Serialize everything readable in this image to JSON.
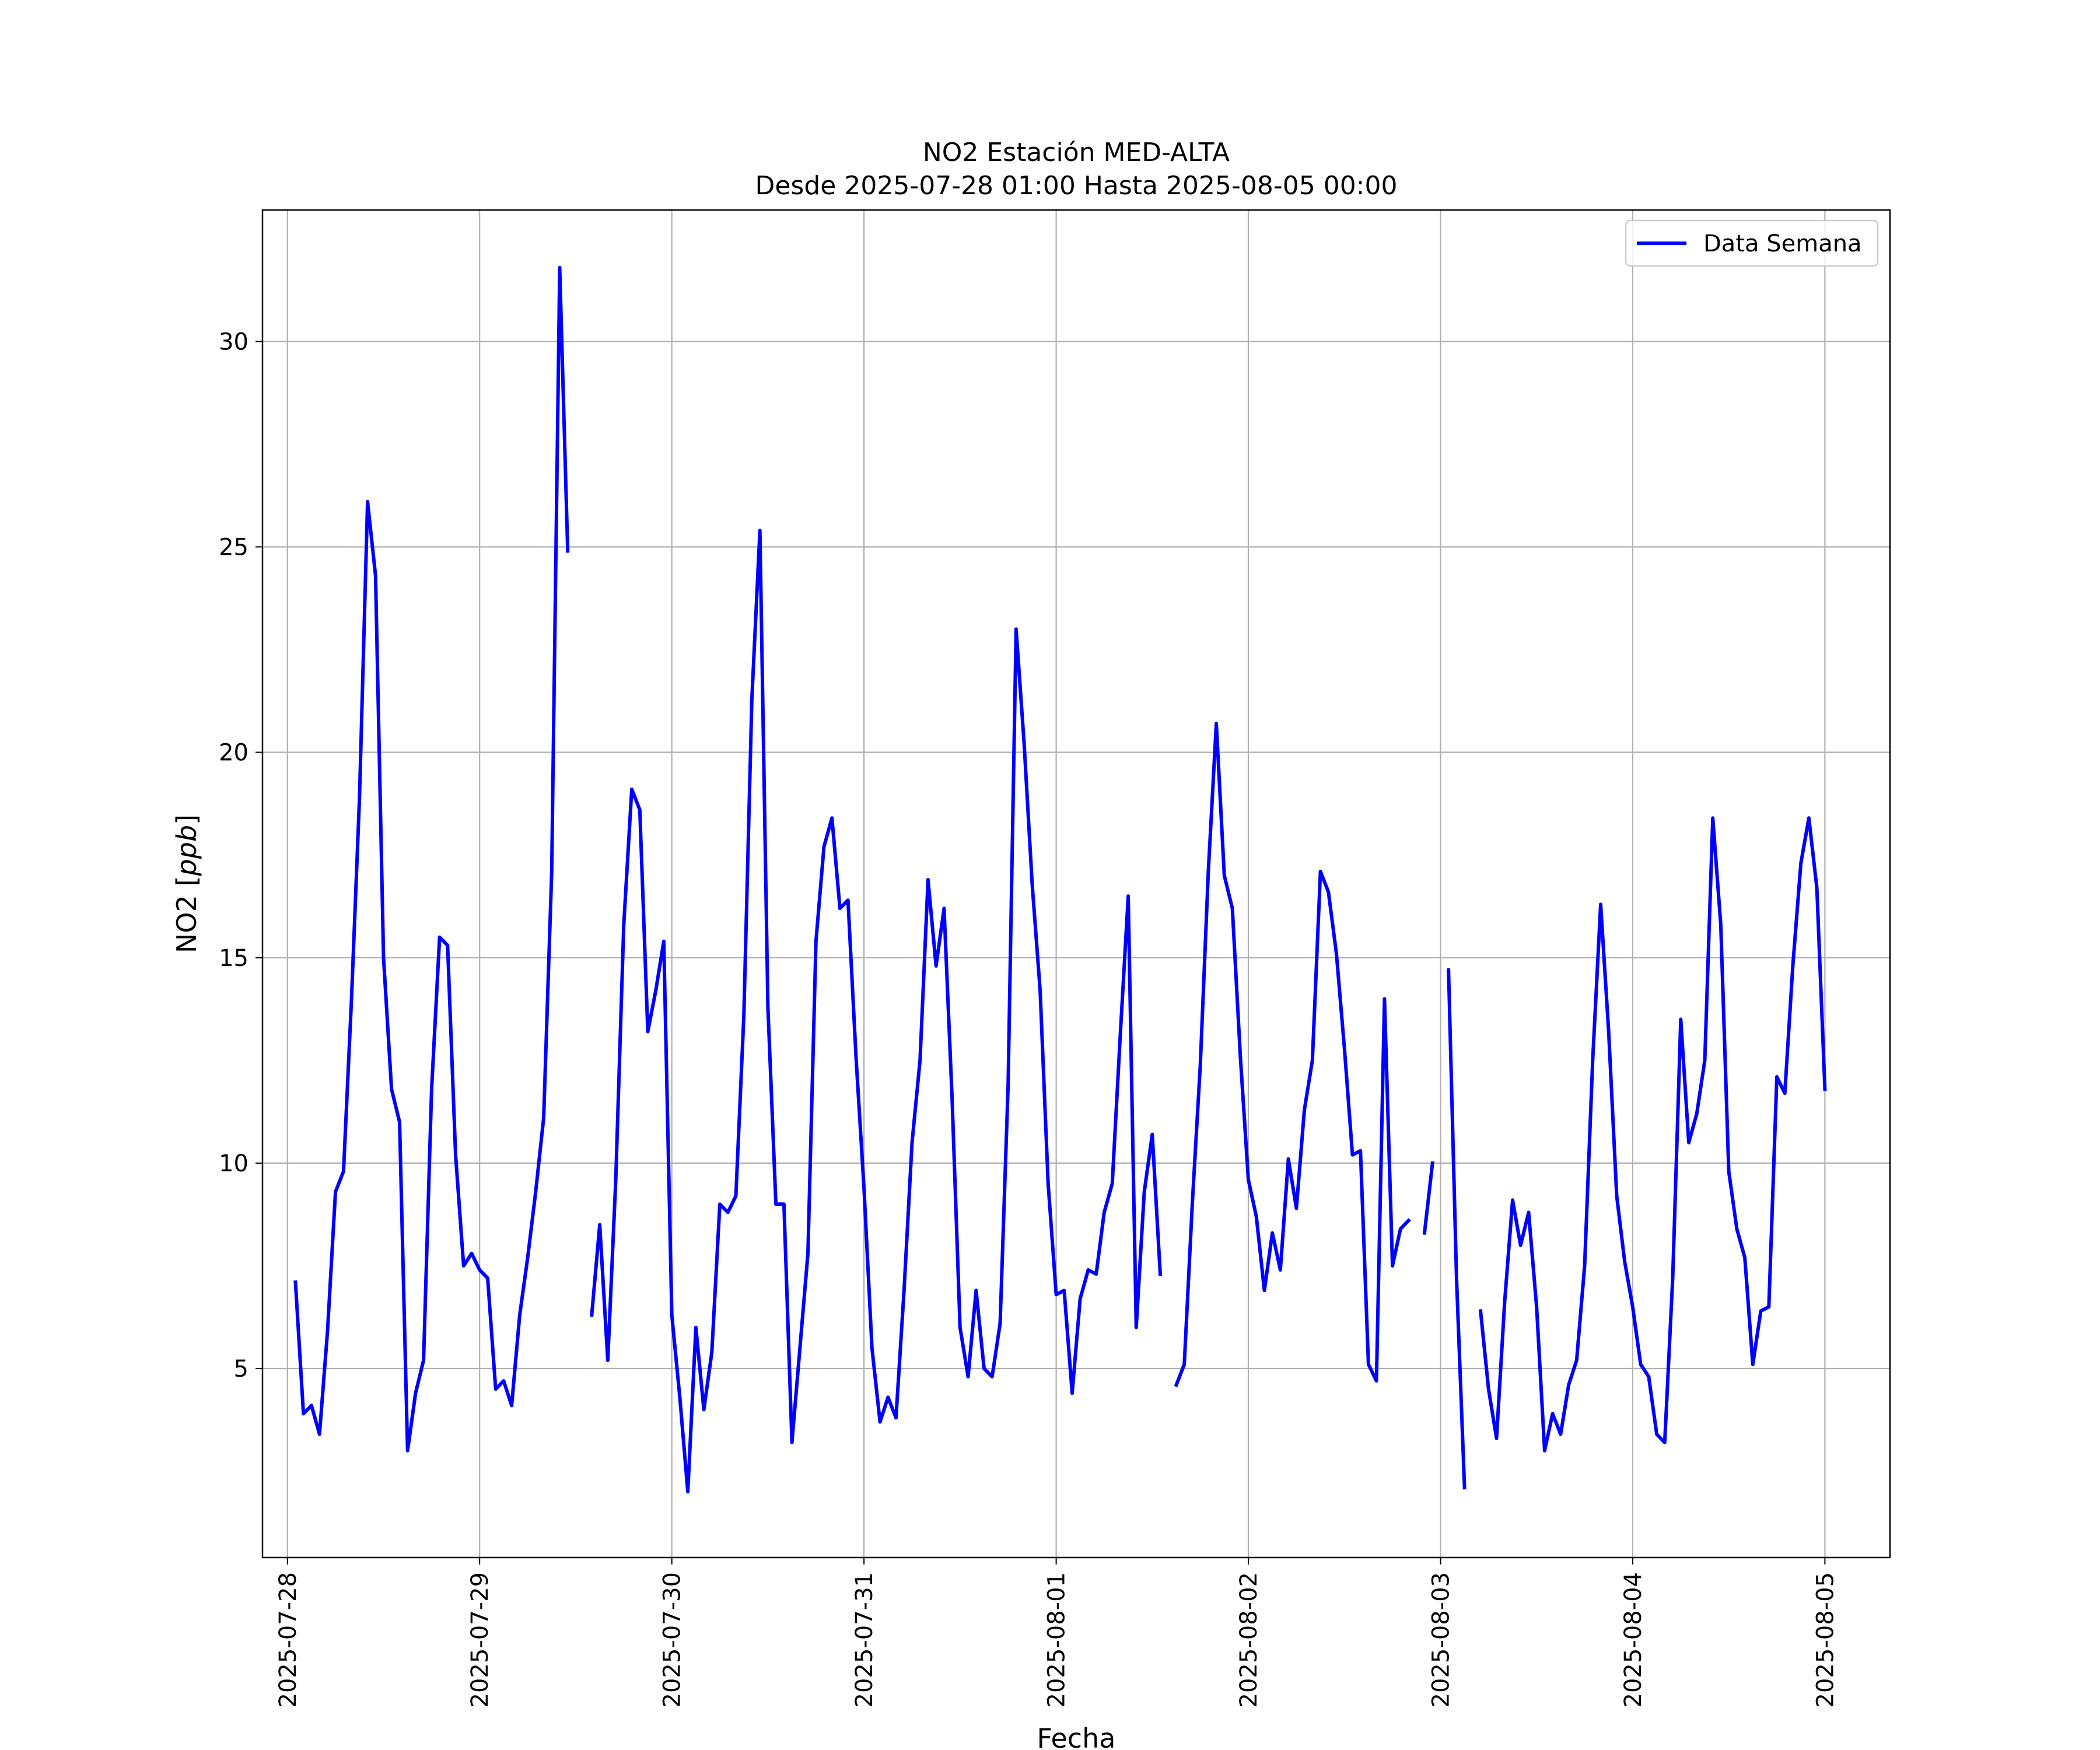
{
  "chart_data": {
    "type": "line",
    "title": "NO2 Estación MED-ALTA",
    "subtitle": "Desde 2025-07-28 01:00 Hasta 2025-08-05 00:00",
    "xlabel": "Fecha",
    "ylabel": "NO2 [ppb]",
    "ylabel_main": "NO2 [",
    "ylabel_unit": "ppb",
    "ylabel_close": "]",
    "x_ticks": [
      "2025-07-28",
      "2025-07-29",
      "2025-07-30",
      "2025-07-31",
      "2025-08-01",
      "2025-08-02",
      "2025-08-03",
      "2025-08-04",
      "2025-08-05"
    ],
    "y_ticks": [
      5,
      10,
      15,
      20,
      25,
      30
    ],
    "xlim": [
      "2025-07-27 20:53",
      "2025-08-05 08:08"
    ],
    "ylim": [
      0.4,
      33.2
    ],
    "grid": true,
    "legend_position": "upper right",
    "series": [
      {
        "name": "Data Semana",
        "color": "#0000ff",
        "segments": [
          [
            [
              "2025-07-28 01:00",
              7.1
            ],
            [
              "2025-07-28 02:00",
              3.9
            ],
            [
              "2025-07-28 03:00",
              4.1
            ],
            [
              "2025-07-28 04:00",
              3.4
            ],
            [
              "2025-07-28 05:00",
              5.9
            ],
            [
              "2025-07-28 06:00",
              9.3
            ],
            [
              "2025-07-28 07:00",
              9.8
            ],
            [
              "2025-07-28 08:00",
              14.0
            ],
            [
              "2025-07-28 09:00",
              18.9
            ],
            [
              "2025-07-28 10:00",
              26.1
            ],
            [
              "2025-07-28 11:00",
              24.3
            ],
            [
              "2025-07-28 12:00",
              15.0
            ],
            [
              "2025-07-28 13:00",
              11.8
            ],
            [
              "2025-07-28 14:00",
              11.0
            ],
            [
              "2025-07-28 15:00",
              3.0
            ],
            [
              "2025-07-28 16:00",
              4.4
            ],
            [
              "2025-07-28 17:00",
              5.2
            ],
            [
              "2025-07-28 18:00",
              11.8
            ],
            [
              "2025-07-28 19:00",
              15.5
            ],
            [
              "2025-07-28 20:00",
              15.3
            ],
            [
              "2025-07-28 21:00",
              10.2
            ],
            [
              "2025-07-28 22:00",
              7.5
            ],
            [
              "2025-07-28 23:00",
              7.8
            ],
            [
              "2025-07-29 00:00",
              7.4
            ],
            [
              "2025-07-29 01:00",
              7.2
            ],
            [
              "2025-07-29 02:00",
              4.5
            ],
            [
              "2025-07-29 03:00",
              4.7
            ],
            [
              "2025-07-29 04:00",
              4.1
            ],
            [
              "2025-07-29 05:00",
              6.3
            ],
            [
              "2025-07-29 06:00",
              7.7
            ],
            [
              "2025-07-29 07:00",
              9.3
            ],
            [
              "2025-07-29 08:00",
              11.1
            ],
            [
              "2025-07-29 09:00",
              17.1
            ],
            [
              "2025-07-29 10:00",
              31.8
            ],
            [
              "2025-07-29 11:00",
              24.9
            ]
          ],
          [
            [
              "2025-07-29 14:00",
              6.3
            ],
            [
              "2025-07-29 15:00",
              8.5
            ],
            [
              "2025-07-29 16:00",
              5.2
            ],
            [
              "2025-07-29 17:00",
              9.6
            ],
            [
              "2025-07-29 18:00",
              15.8
            ],
            [
              "2025-07-29 19:00",
              19.1
            ],
            [
              "2025-07-29 20:00",
              18.6
            ],
            [
              "2025-07-29 21:00",
              13.2
            ],
            [
              "2025-07-29 22:00",
              14.2
            ],
            [
              "2025-07-29 23:00",
              15.4
            ],
            [
              "2025-07-30 00:00",
              6.3
            ],
            [
              "2025-07-30 01:00",
              4.3
            ],
            [
              "2025-07-30 02:00",
              2.0
            ],
            [
              "2025-07-30 03:00",
              6.0
            ],
            [
              "2025-07-30 04:00",
              4.0
            ],
            [
              "2025-07-30 05:00",
              5.4
            ],
            [
              "2025-07-30 06:00",
              9.0
            ],
            [
              "2025-07-30 07:00",
              8.8
            ],
            [
              "2025-07-30 08:00",
              9.2
            ],
            [
              "2025-07-30 09:00",
              13.6
            ],
            [
              "2025-07-30 10:00",
              21.3
            ],
            [
              "2025-07-30 11:00",
              25.4
            ],
            [
              "2025-07-30 12:00",
              13.8
            ],
            [
              "2025-07-30 13:00",
              9.0
            ],
            [
              "2025-07-30 14:00",
              9.0
            ],
            [
              "2025-07-30 15:00",
              3.2
            ],
            [
              "2025-07-30 16:00",
              5.5
            ],
            [
              "2025-07-30 17:00",
              7.8
            ],
            [
              "2025-07-30 18:00",
              15.4
            ],
            [
              "2025-07-30 19:00",
              17.7
            ],
            [
              "2025-07-30 20:00",
              18.4
            ],
            [
              "2025-07-30 21:00",
              16.2
            ],
            [
              "2025-07-30 22:00",
              16.4
            ],
            [
              "2025-07-30 23:00",
              12.6
            ],
            [
              "2025-07-31 00:00",
              9.4
            ],
            [
              "2025-07-31 01:00",
              5.5
            ],
            [
              "2025-07-31 02:00",
              3.7
            ],
            [
              "2025-07-31 03:00",
              4.3
            ],
            [
              "2025-07-31 04:00",
              3.8
            ],
            [
              "2025-07-31 05:00",
              6.9
            ],
            [
              "2025-07-31 06:00",
              10.5
            ],
            [
              "2025-07-31 07:00",
              12.5
            ],
            [
              "2025-07-31 08:00",
              16.9
            ],
            [
              "2025-07-31 09:00",
              14.8
            ],
            [
              "2025-07-31 10:00",
              16.2
            ],
            [
              "2025-07-31 11:00",
              11.6
            ],
            [
              "2025-07-31 12:00",
              6.0
            ],
            [
              "2025-07-31 13:00",
              4.8
            ],
            [
              "2025-07-31 14:00",
              6.9
            ],
            [
              "2025-07-31 15:00",
              5.0
            ],
            [
              "2025-07-31 16:00",
              4.8
            ],
            [
              "2025-07-31 17:00",
              6.1
            ],
            [
              "2025-07-31 18:00",
              11.9
            ],
            [
              "2025-07-31 19:00",
              23.0
            ],
            [
              "2025-07-31 20:00",
              20.2
            ],
            [
              "2025-07-31 21:00",
              16.8
            ],
            [
              "2025-07-31 22:00",
              14.2
            ],
            [
              "2025-07-31 23:00",
              9.5
            ],
            [
              "2025-08-01 00:00",
              6.8
            ],
            [
              "2025-08-01 01:00",
              6.9
            ],
            [
              "2025-08-01 02:00",
              4.4
            ],
            [
              "2025-08-01 03:00",
              6.7
            ],
            [
              "2025-08-01 04:00",
              7.4
            ],
            [
              "2025-08-01 05:00",
              7.3
            ],
            [
              "2025-08-01 06:00",
              8.8
            ],
            [
              "2025-08-01 07:00",
              9.5
            ],
            [
              "2025-08-01 08:00",
              13.1
            ],
            [
              "2025-08-01 09:00",
              16.5
            ],
            [
              "2025-08-01 10:00",
              6.0
            ],
            [
              "2025-08-01 11:00",
              9.3
            ],
            [
              "2025-08-01 12:00",
              10.7
            ],
            [
              "2025-08-01 13:00",
              7.3
            ]
          ],
          [
            [
              "2025-08-01 15:00",
              4.6
            ],
            [
              "2025-08-01 16:00",
              5.1
            ],
            [
              "2025-08-01 17:00",
              9.0
            ],
            [
              "2025-08-01 18:00",
              12.4
            ],
            [
              "2025-08-01 19:00",
              17.1
            ],
            [
              "2025-08-01 20:00",
              20.7
            ],
            [
              "2025-08-01 21:00",
              17.0
            ],
            [
              "2025-08-01 22:00",
              16.2
            ],
            [
              "2025-08-01 23:00",
              12.6
            ],
            [
              "2025-08-02 00:00",
              9.6
            ],
            [
              "2025-08-02 01:00",
              8.7
            ],
            [
              "2025-08-02 02:00",
              6.9
            ],
            [
              "2025-08-02 03:00",
              8.3
            ],
            [
              "2025-08-02 04:00",
              7.4
            ],
            [
              "2025-08-02 05:00",
              10.1
            ],
            [
              "2025-08-02 06:00",
              8.9
            ],
            [
              "2025-08-02 07:00",
              11.3
            ],
            [
              "2025-08-02 08:00",
              12.5
            ],
            [
              "2025-08-02 09:00",
              17.1
            ],
            [
              "2025-08-02 10:00",
              16.6
            ],
            [
              "2025-08-02 11:00",
              15.1
            ],
            [
              "2025-08-02 12:00",
              12.8
            ],
            [
              "2025-08-02 13:00",
              10.2
            ],
            [
              "2025-08-02 14:00",
              10.3
            ],
            [
              "2025-08-02 15:00",
              5.1
            ],
            [
              "2025-08-02 16:00",
              4.7
            ],
            [
              "2025-08-02 17:00",
              14.0
            ],
            [
              "2025-08-02 18:00",
              7.5
            ],
            [
              "2025-08-02 19:00",
              8.4
            ],
            [
              "2025-08-02 20:00",
              8.6
            ]
          ],
          [
            [
              "2025-08-02 22:00",
              8.3
            ],
            [
              "2025-08-02 23:00",
              10.0
            ]
          ],
          [
            [
              "2025-08-03 01:00",
              14.7
            ],
            [
              "2025-08-03 02:00",
              7.2
            ],
            [
              "2025-08-03 03:00",
              2.1
            ]
          ],
          [
            [
              "2025-08-03 05:00",
              6.4
            ],
            [
              "2025-08-03 06:00",
              4.5
            ],
            [
              "2025-08-03 07:00",
              3.3
            ],
            [
              "2025-08-03 08:00",
              6.6
            ],
            [
              "2025-08-03 09:00",
              9.1
            ],
            [
              "2025-08-03 10:00",
              8.0
            ],
            [
              "2025-08-03 11:00",
              8.8
            ],
            [
              "2025-08-03 12:00",
              6.5
            ],
            [
              "2025-08-03 13:00",
              3.0
            ],
            [
              "2025-08-03 14:00",
              3.9
            ],
            [
              "2025-08-03 15:00",
              3.4
            ],
            [
              "2025-08-03 16:00",
              4.6
            ],
            [
              "2025-08-03 17:00",
              5.2
            ],
            [
              "2025-08-03 18:00",
              7.5
            ],
            [
              "2025-08-03 19:00",
              12.5
            ],
            [
              "2025-08-03 20:00",
              16.3
            ],
            [
              "2025-08-03 21:00",
              13.2
            ],
            [
              "2025-08-03 22:00",
              9.2
            ],
            [
              "2025-08-03 23:00",
              7.6
            ],
            [
              "2025-08-04 00:00",
              6.5
            ],
            [
              "2025-08-04 01:00",
              5.1
            ],
            [
              "2025-08-04 02:00",
              4.8
            ],
            [
              "2025-08-04 03:00",
              3.4
            ],
            [
              "2025-08-04 04:00",
              3.2
            ],
            [
              "2025-08-04 05:00",
              7.2
            ],
            [
              "2025-08-04 06:00",
              13.5
            ],
            [
              "2025-08-04 07:00",
              10.5
            ],
            [
              "2025-08-04 08:00",
              11.2
            ],
            [
              "2025-08-04 09:00",
              12.5
            ],
            [
              "2025-08-04 10:00",
              18.4
            ],
            [
              "2025-08-04 11:00",
              15.8
            ],
            [
              "2025-08-04 12:00",
              9.8
            ],
            [
              "2025-08-04 13:00",
              8.4
            ],
            [
              "2025-08-04 14:00",
              7.7
            ],
            [
              "2025-08-04 15:00",
              5.1
            ],
            [
              "2025-08-04 16:00",
              6.4
            ],
            [
              "2025-08-04 17:00",
              6.5
            ],
            [
              "2025-08-04 18:00",
              12.1
            ],
            [
              "2025-08-04 19:00",
              11.7
            ],
            [
              "2025-08-04 20:00",
              14.8
            ],
            [
              "2025-08-04 21:00",
              17.3
            ],
            [
              "2025-08-04 22:00",
              18.4
            ],
            [
              "2025-08-04 23:00",
              16.7
            ],
            [
              "2025-08-05 00:00",
              11.8
            ]
          ]
        ]
      }
    ]
  }
}
